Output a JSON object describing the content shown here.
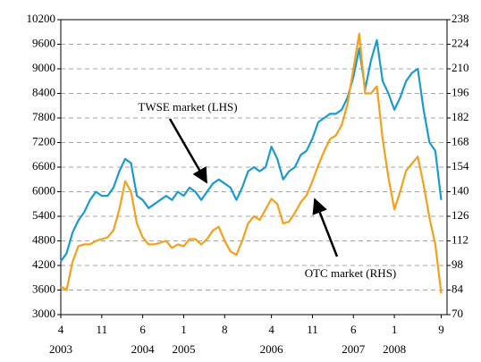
{
  "chart_data": {
    "type": "line",
    "x": [
      "2003-04",
      "2003-05",
      "2003-06",
      "2003-07",
      "2003-08",
      "2003-09",
      "2003-10",
      "2003-11",
      "2003-12",
      "2004-01",
      "2004-02",
      "2004-03",
      "2004-04",
      "2004-05",
      "2004-06",
      "2004-07",
      "2004-08",
      "2004-09",
      "2004-10",
      "2004-11",
      "2004-12",
      "2005-01",
      "2005-02",
      "2005-03",
      "2005-04",
      "2005-05",
      "2005-06",
      "2005-07",
      "2005-08",
      "2005-09",
      "2005-10",
      "2005-11",
      "2005-12",
      "2006-01",
      "2006-02",
      "2006-03",
      "2006-04",
      "2006-05",
      "2006-06",
      "2006-07",
      "2006-08",
      "2006-09",
      "2006-10",
      "2006-11",
      "2006-12",
      "2007-01",
      "2007-02",
      "2007-03",
      "2007-04",
      "2007-05",
      "2007-06",
      "2007-07",
      "2007-08",
      "2007-09",
      "2007-10",
      "2007-11",
      "2007-12",
      "2008-01",
      "2008-02",
      "2008-03",
      "2008-04",
      "2008-05",
      "2008-06",
      "2008-07",
      "2008-08",
      "2008-09"
    ],
    "series": [
      {
        "name": "TWSE market (LHS)",
        "color": "#1a9bd0",
        "axis": "y",
        "values": [
          4300,
          4500,
          5000,
          5300,
          5500,
          5800,
          6000,
          5900,
          5900,
          6100,
          6500,
          6800,
          6700,
          5900,
          5800,
          5600,
          5700,
          5800,
          5900,
          5800,
          6000,
          5900,
          6100,
          6000,
          5800,
          6000,
          6200,
          6300,
          6200,
          6100,
          5800,
          6100,
          6500,
          6600,
          6500,
          6600,
          7100,
          6800,
          6300,
          6500,
          6600,
          6900,
          7000,
          7300,
          7700,
          7800,
          7900,
          7900,
          8000,
          8300,
          8800,
          9500,
          8500,
          9200,
          9700,
          8700,
          8400,
          8000,
          8300,
          8700,
          8900,
          9000,
          8000,
          7200,
          7000,
          5800
        ]
      },
      {
        "name": "OTC market (RHS)",
        "color": "#f5a01a",
        "axis": "y2",
        "values": [
          86,
          84,
          100,
          109,
          110,
          110,
          112,
          113,
          114,
          118,
          130,
          146,
          140,
          122,
          114,
          110,
          110,
          111,
          112,
          108,
          110,
          109,
          113,
          113,
          110,
          113,
          118,
          120,
          112,
          106,
          104,
          112,
          122,
          126,
          124,
          130,
          136,
          133,
          122,
          123,
          128,
          134,
          138,
          146,
          155,
          163,
          170,
          172,
          178,
          190,
          210,
          230,
          196,
          196,
          200,
          170,
          148,
          130,
          140,
          152,
          156,
          160,
          144,
          125,
          110,
          82
        ]
      }
    ],
    "xlim": [
      "2003-04",
      "2008-10"
    ],
    "xticks": [
      {
        "value": "2003-04",
        "label": "4"
      },
      {
        "value": "2003-11",
        "label": "11"
      },
      {
        "value": "2004-06",
        "label": "6"
      },
      {
        "value": "2005-01",
        "label": "1"
      },
      {
        "value": "2005-08",
        "label": "8"
      },
      {
        "value": "2006-04",
        "label": "4"
      },
      {
        "value": "2006-11",
        "label": "11"
      },
      {
        "value": "2007-06",
        "label": "6"
      },
      {
        "value": "2008-01",
        "label": "1"
      },
      {
        "value": "2008-09",
        "label": "9"
      }
    ],
    "xyears": [
      {
        "value": "2003-04",
        "label": "2003"
      },
      {
        "value": "2004-06",
        "label": "2004"
      },
      {
        "value": "2005-01",
        "label": "2005"
      },
      {
        "value": "2006-04",
        "label": "2006"
      },
      {
        "value": "2007-06",
        "label": "2007"
      },
      {
        "value": "2008-01",
        "label": "2008"
      }
    ],
    "ylim": [
      3000,
      10200
    ],
    "yticks": [
      3000,
      3600,
      4200,
      4800,
      5400,
      6000,
      6600,
      7200,
      7800,
      8400,
      9000,
      9600,
      10200
    ],
    "y2lim": [
      70,
      238
    ],
    "y2ticks": [
      70,
      84,
      98,
      112,
      126,
      140,
      154,
      168,
      182,
      196,
      210,
      224,
      238
    ],
    "grid": true
  }
}
